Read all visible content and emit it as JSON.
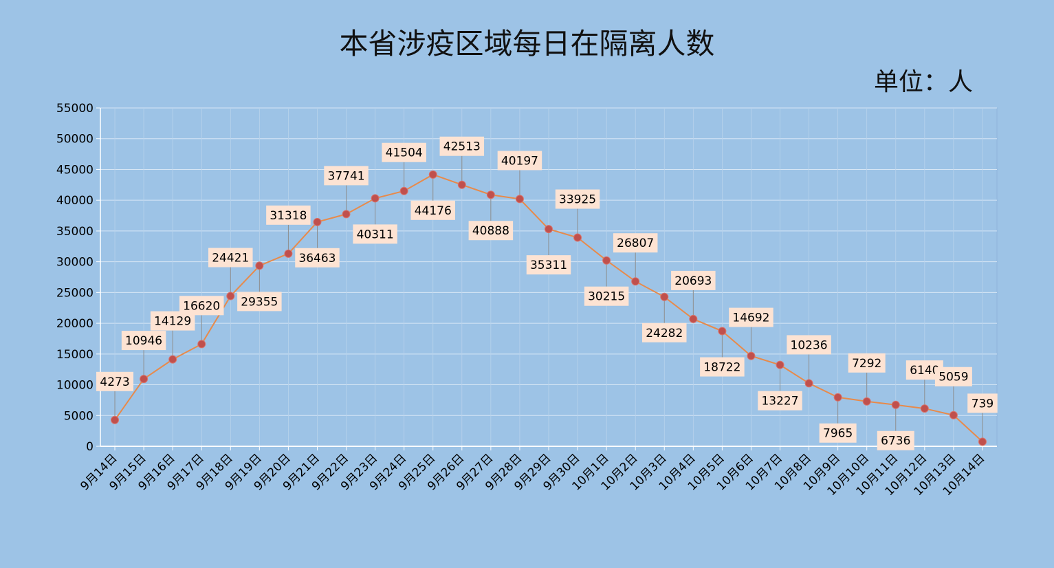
{
  "chart_data": {
    "type": "line",
    "title": "本省涉疫区域每日在隔离人数",
    "unit": "单位：人",
    "categories": [
      "9月14日",
      "9月15日",
      "9月16日",
      "9月17日",
      "9月18日",
      "9月19日",
      "9月20日",
      "9月21日",
      "9月22日",
      "9月23日",
      "9月24日",
      "9月25日",
      "9月26日",
      "9月27日",
      "9月28日",
      "9月29日",
      "9月30日",
      "10月1日",
      "10月2日",
      "10月3日",
      "10月4日",
      "10月5日",
      "10月6日",
      "10月7日",
      "10月8日",
      "10月9日",
      "10月10日",
      "10月11日",
      "10月12日",
      "10月13日",
      "10月14日"
    ],
    "values": [
      4273,
      10946,
      14129,
      16620,
      24421,
      29355,
      31318,
      36463,
      37741,
      40311,
      41504,
      44176,
      42513,
      40888,
      40197,
      35311,
      33925,
      30215,
      26807,
      24282,
      20693,
      18722,
      14692,
      13227,
      10236,
      7965,
      7292,
      6736,
      6140,
      5059,
      739
    ],
    "label_positions": [
      "above",
      "above",
      "above",
      "above",
      "above",
      "below",
      "above",
      "below",
      "above",
      "below",
      "above",
      "below",
      "above",
      "below",
      "above",
      "below",
      "above",
      "below",
      "above",
      "below",
      "above",
      "below",
      "above",
      "below",
      "above",
      "below",
      "above",
      "below",
      "above",
      "above",
      "above"
    ],
    "ylim": [
      0,
      55000
    ],
    "yticks": [
      0,
      5000,
      10000,
      15000,
      20000,
      25000,
      30000,
      35000,
      40000,
      45000,
      50000,
      55000
    ],
    "grid": true,
    "colors": {
      "background": "#9dc3e6",
      "line": "#e88a4a",
      "marker": "#c0504d",
      "label_bg": "#fde3d3",
      "gridline": "#d7e6f5",
      "axis": "#ffffff"
    }
  }
}
